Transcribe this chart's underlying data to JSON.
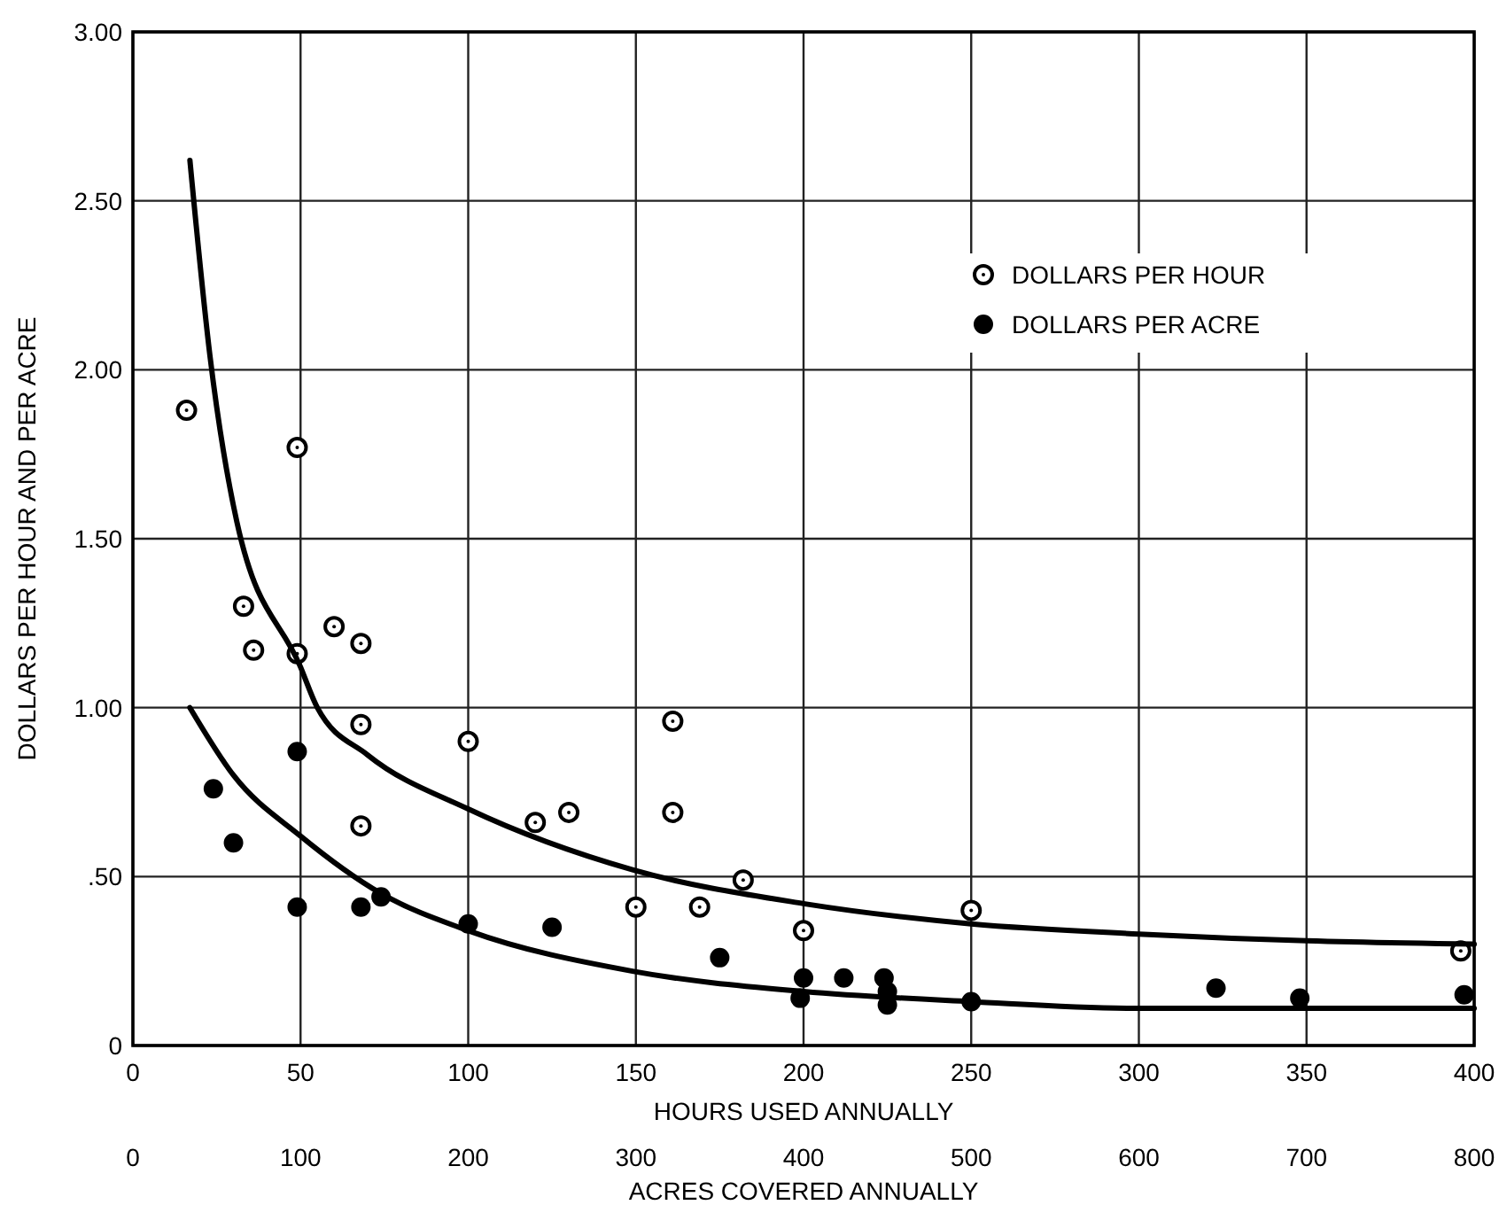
{
  "chart_data": {
    "type": "scatter",
    "xlabel": "HOURS USED ANNUALLY",
    "ylabel": "DOLLARS PER HOUR AND PER ACRE",
    "x2label": "ACRES COVERED ANNUALLY",
    "xlim": [
      0,
      400
    ],
    "xticks": [
      0,
      50,
      100,
      150,
      200,
      250,
      300,
      350,
      400
    ],
    "x2lim": [
      0,
      800
    ],
    "x2ticks": [
      0,
      100,
      200,
      300,
      400,
      500,
      600,
      700,
      800
    ],
    "ylim": [
      0,
      3
    ],
    "yticks": [
      0,
      {
        "value": 0.5,
        "label": ".50"
      },
      {
        "value": 1,
        "label": "1.00"
      },
      {
        "value": 1.5,
        "label": "1.50"
      },
      {
        "value": 2,
        "label": "2.00"
      },
      {
        "value": 2.5,
        "label": "2.50"
      },
      {
        "value": 3,
        "label": "3.00"
      }
    ],
    "grid": true,
    "legend": "top right",
    "series": [
      {
        "name": "DOLLARS PER HOUR",
        "color": "#000000",
        "marker": "circle",
        "x": [
          16,
          49,
          33,
          36,
          49,
          60,
          68,
          68,
          68,
          100,
          120,
          130,
          161,
          161,
          150,
          169,
          182,
          200,
          250,
          396
        ],
        "values": [
          1.88,
          1.77,
          1.3,
          1.17,
          1.16,
          1.24,
          1.19,
          0.95,
          0.65,
          0.9,
          0.66,
          0.69,
          0.96,
          0.69,
          0.41,
          0.41,
          0.49,
          0.34,
          0.4,
          0.28
        ]
      },
      {
        "name": "DOLLARS PER ACRE",
        "color": "#000000",
        "marker": "circle",
        "x": [
          24,
          30,
          49,
          49,
          68,
          74,
          100,
          125,
          175,
          200,
          199,
          212,
          224,
          225,
          225,
          250,
          323,
          348,
          397
        ],
        "values": [
          0.76,
          0.6,
          0.87,
          0.41,
          0.41,
          0.44,
          0.36,
          0.35,
          0.26,
          0.2,
          0.14,
          0.2,
          0.2,
          0.16,
          0.12,
          0.13,
          0.17,
          0.14,
          0.15
        ]
      },
      {
        "type": "line",
        "color": "#000000",
        "marker": "none",
        "x": [
          17,
          23,
          31,
          50,
          55,
          70,
          100,
          149,
          200,
          250,
          300,
          350,
          400
        ],
        "values": [
          2.62,
          2.04,
          1.55,
          1.12,
          1.0,
          0.86,
          0.7,
          0.52,
          0.42,
          0.36,
          0.33,
          0.31,
          0.3
        ]
      },
      {
        "type": "line",
        "color": "#000000",
        "marker": "none",
        "x": [
          17,
          30,
          50,
          74,
          100,
          149,
          200,
          250,
          300,
          400
        ],
        "values": [
          1.0,
          0.8,
          0.62,
          0.45,
          0.34,
          0.22,
          0.16,
          0.13,
          0.11,
          0.11
        ]
      }
    ]
  }
}
